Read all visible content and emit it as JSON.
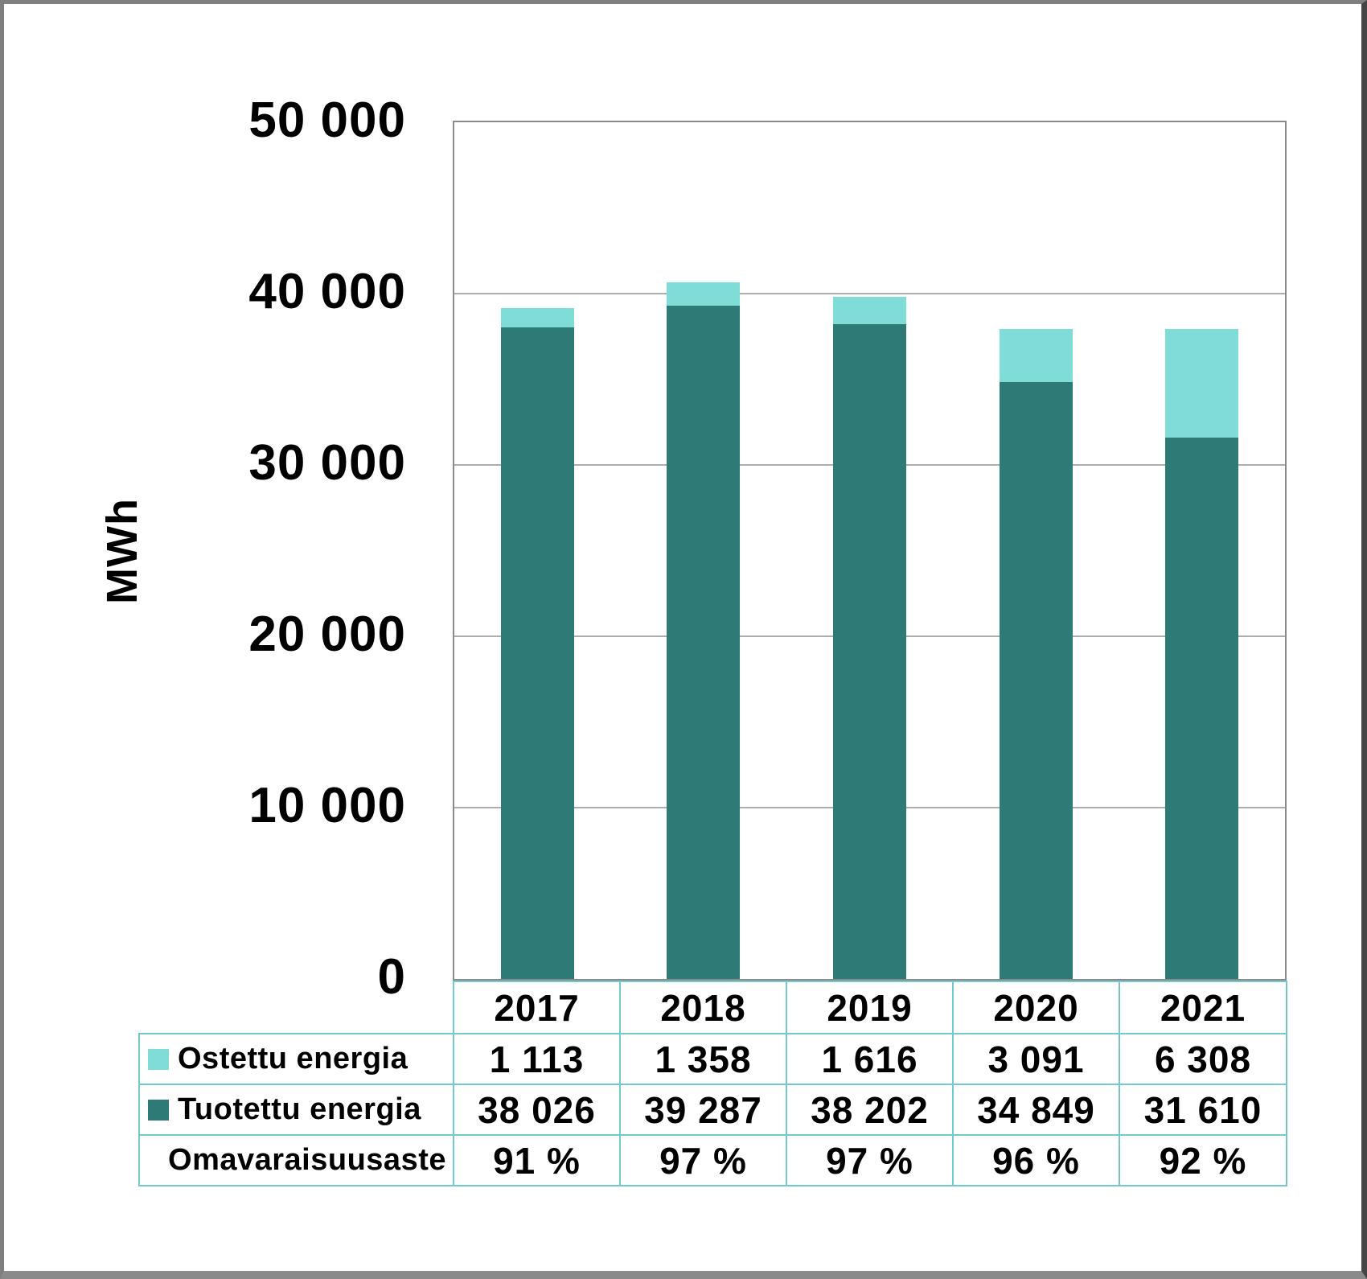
{
  "frame": {
    "background": "#ffffff",
    "border_color": "#7f7f7f"
  },
  "axis": {
    "y_title": "MWh",
    "y_tick_labels": [
      "50 000",
      "40 000",
      "30 000",
      "20 000",
      "10 000",
      "0"
    ]
  },
  "chart_data": {
    "type": "bar",
    "stacked": true,
    "title": "",
    "ylabel": "MWh",
    "ylim": [
      0,
      50000
    ],
    "gridline_step": 10000,
    "grid": true,
    "legend_position": "in-table-left",
    "categories": [
      "2017",
      "2018",
      "2019",
      "2020",
      "2021"
    ],
    "series": [
      {
        "name": "Tuotettu energia",
        "stack_order": "bottom",
        "color": "#2d7a77",
        "values": [
          38026,
          39287,
          38202,
          34849,
          31610
        ]
      },
      {
        "name": "Ostettu energia",
        "stack_order": "top",
        "color": "#7fdcd6",
        "values": [
          1113,
          1358,
          1616,
          3091,
          6308
        ]
      }
    ],
    "self_sufficiency_row": {
      "name": "Omavaraisuusaste",
      "values_pct": [
        91,
        97,
        97,
        96,
        92
      ]
    }
  },
  "table": {
    "border_color": "#74c9ce",
    "header_row": [
      "2017",
      "2018",
      "2019",
      "2020",
      "2021"
    ],
    "rows": [
      {
        "label": "Ostettu energia",
        "chip_color": "#7fdcd6",
        "values": [
          "1 113",
          "1 358",
          "1 616",
          "3 091",
          "6 308"
        ],
        "align": "left"
      },
      {
        "label": "Tuotettu energia",
        "chip_color": "#2d7a77",
        "values": [
          "38 026",
          "39 287",
          "38 202",
          "34 849",
          "31 610"
        ],
        "align": "left"
      },
      {
        "label": "Omavaraisuusaste",
        "chip_color": null,
        "values": [
          "91 %",
          "97 %",
          "97 %",
          "96 %",
          "92 %"
        ],
        "align": "right"
      }
    ]
  },
  "colors": {
    "gridline": "#adadad",
    "plot_border": "#8a8a8a",
    "text": "#000000"
  }
}
